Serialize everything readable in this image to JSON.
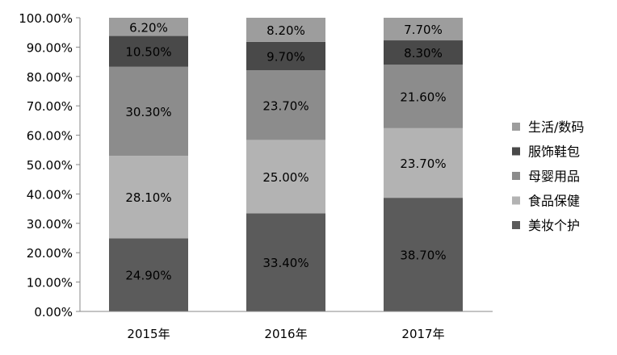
{
  "chart_data": {
    "type": "bar",
    "stacked": true,
    "categories": [
      "2015年",
      "2016年",
      "2017年"
    ],
    "ylim": [
      0,
      100
    ],
    "ytick_labels": [
      "0.00%",
      "10.00%",
      "20.00%",
      "30.00%",
      "40.00%",
      "50.00%",
      "60.00%",
      "70.00%",
      "80.00%",
      "90.00%",
      "100.00%"
    ],
    "series": [
      {
        "name": "美妆个护",
        "color": "#5b5b5b",
        "values": [
          24.9,
          33.4,
          38.7
        ],
        "labels": [
          "24.90%",
          "33.40%",
          "38.70%"
        ]
      },
      {
        "name": "食品保健",
        "color": "#b3b3b3",
        "values": [
          28.1,
          25.0,
          23.7
        ],
        "labels": [
          "28.10%",
          "25.00%",
          "23.70%"
        ]
      },
      {
        "name": "母婴用品",
        "color": "#8c8c8c",
        "values": [
          30.3,
          23.7,
          21.6
        ],
        "labels": [
          "30.30%",
          "23.70%",
          "21.60%"
        ]
      },
      {
        "name": "服饰鞋包",
        "color": "#494949",
        "values": [
          10.5,
          9.7,
          8.3
        ],
        "labels": [
          "10.50%",
          "9.70%",
          "8.30%"
        ]
      },
      {
        "name": "生活/数码",
        "color": "#9d9d9d",
        "values": [
          6.2,
          8.2,
          7.7
        ],
        "labels": [
          "6.20%",
          "8.20%",
          "7.70%"
        ]
      }
    ],
    "legend": {
      "position": "right",
      "entries": [
        "生活/数码",
        "服饰鞋包",
        "母婴用品",
        "食品保健",
        "美妆个护"
      ]
    },
    "grid": false
  }
}
